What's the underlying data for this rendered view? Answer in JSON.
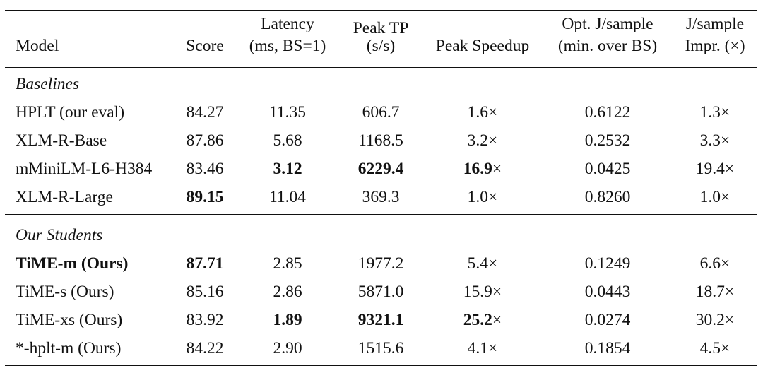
{
  "table": {
    "header": {
      "model": "Model",
      "score": "Score",
      "latency_line1": "Latency",
      "latency_line2": "(ms, BS=1)",
      "tp_line1": "Peak TP",
      "tp_line2": "(s/s)",
      "speedup": "Peak Speedup",
      "opt_line1": "Opt. J/sample",
      "opt_line2": "(min. over BS)",
      "impr_line1": "J/sample",
      "impr_line2": "Impr. (×)"
    },
    "sections": [
      {
        "title": "Baselines",
        "rows": [
          {
            "model": "HPLT (our eval)",
            "score": "84.27",
            "latency": "11.35",
            "tp": "606.7",
            "speedup": "1.6",
            "speedup_x": "×",
            "opt": "0.6122",
            "impr": "1.3×"
          },
          {
            "model": "XLM-R-Base",
            "score": "87.86",
            "latency": "5.68",
            "tp": "1168.5",
            "speedup": "3.2",
            "speedup_x": "×",
            "opt": "0.2532",
            "impr": "3.3×"
          },
          {
            "model": "mMiniLM-L6-H384",
            "score": "83.46",
            "latency": "3.12",
            "tp": "6229.4",
            "speedup": "16.9",
            "speedup_x": "×",
            "opt": "0.0425",
            "impr": "19.4×"
          },
          {
            "model": "XLM-R-Large",
            "score": "89.15",
            "latency": "11.04",
            "tp": "369.3",
            "speedup": "1.0",
            "speedup_x": "×",
            "opt": "0.8260",
            "impr": "1.0×"
          }
        ]
      },
      {
        "title": "Our Students",
        "rows": [
          {
            "model": "TiME-m (Ours)",
            "score": "87.71",
            "latency": "2.85",
            "tp": "1977.2",
            "speedup": "5.4",
            "speedup_x": "×",
            "opt": "0.1249",
            "impr": "6.6×"
          },
          {
            "model": "TiME-s (Ours)",
            "score": "85.16",
            "latency": "2.86",
            "tp": "5871.0",
            "speedup": "15.9",
            "speedup_x": "×",
            "opt": "0.0443",
            "impr": "18.7×"
          },
          {
            "model": "TiME-xs (Ours)",
            "score": "83.92",
            "latency": "1.89",
            "tp": "9321.1",
            "speedup": "25.2",
            "speedup_x": "×",
            "opt": "0.0274",
            "impr": "30.2×"
          },
          {
            "model": "*-hplt-m (Ours)",
            "score": "84.22",
            "latency": "2.90",
            "tp": "1515.6",
            "speedup": "4.1",
            "speedup_x": "×",
            "opt": "0.1854",
            "impr": "4.5×"
          }
        ]
      }
    ]
  }
}
